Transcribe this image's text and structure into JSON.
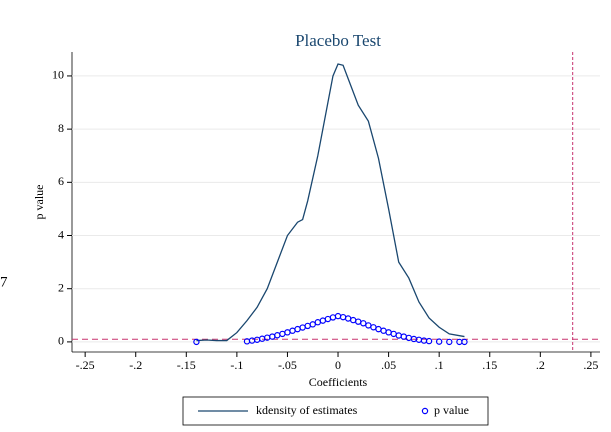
{
  "chart_data": {
    "type": "line",
    "title": "Placebo Test",
    "x_label": "Coefficients",
    "y_label": "p value",
    "edge_label": "7",
    "xlim": [
      -0.263,
      0.259
    ],
    "ylim": [
      -0.38,
      10.9
    ],
    "xticks": [
      {
        "value": -0.25,
        "label": "-.25"
      },
      {
        "value": -0.2,
        "label": "-.2"
      },
      {
        "value": -0.15,
        "label": "-.15"
      },
      {
        "value": -0.1,
        "label": "-.1"
      },
      {
        "value": -0.05,
        "label": "-.05"
      },
      0,
      {
        "value": 0.05,
        "label": ".05"
      },
      {
        "value": 0.1,
        "label": ".1"
      },
      {
        "value": 0.15,
        "label": ".15"
      },
      {
        "value": 0.2,
        "label": ".2"
      },
      {
        "value": 0.25,
        "label": ".25"
      }
    ],
    "yticks": [
      0,
      2,
      4,
      6,
      8,
      10
    ],
    "grid": true,
    "reference_lines": {
      "x": 0.232,
      "y": 0.1,
      "color": "#c8326e"
    },
    "series": [
      {
        "name": "kdensity of estimates",
        "type": "line",
        "color": "#1a476f",
        "x": [
          -0.14,
          -0.13,
          -0.12,
          -0.11,
          -0.1,
          -0.09,
          -0.08,
          -0.07,
          -0.06,
          -0.05,
          -0.04,
          -0.035,
          -0.03,
          -0.02,
          -0.01,
          -0.005,
          0,
          0.005,
          0.01,
          0.02,
          0.03,
          0.04,
          0.05,
          0.06,
          0.07,
          0.08,
          0.09,
          0.1,
          0.11,
          0.125
        ],
        "values": [
          0.05,
          0.07,
          0.05,
          0.05,
          0.35,
          0.8,
          1.3,
          2.0,
          3.0,
          4.0,
          4.5,
          4.6,
          5.3,
          7.0,
          9.0,
          10.0,
          10.45,
          10.4,
          9.9,
          8.9,
          8.3,
          6.9,
          5.0,
          3.0,
          2.4,
          1.5,
          0.9,
          0.55,
          0.3,
          0.2
        ]
      },
      {
        "name": "p value",
        "type": "scatter",
        "color": "#0000ff",
        "x": [
          -0.14,
          -0.09,
          -0.085,
          -0.08,
          -0.075,
          -0.07,
          -0.065,
          -0.06,
          -0.055,
          -0.05,
          -0.045,
          -0.04,
          -0.035,
          -0.03,
          -0.025,
          -0.02,
          -0.015,
          -0.01,
          -0.005,
          0,
          0.005,
          0.01,
          0.015,
          0.02,
          0.025,
          0.03,
          0.035,
          0.04,
          0.045,
          0.05,
          0.055,
          0.06,
          0.065,
          0.07,
          0.075,
          0.08,
          0.085,
          0.09,
          0.1,
          0.11,
          0.12,
          0.125
        ],
        "values": [
          0.0,
          0.02,
          0.05,
          0.08,
          0.12,
          0.16,
          0.2,
          0.25,
          0.3,
          0.36,
          0.42,
          0.48,
          0.54,
          0.6,
          0.66,
          0.74,
          0.8,
          0.86,
          0.92,
          0.97,
          0.93,
          0.88,
          0.82,
          0.76,
          0.7,
          0.62,
          0.55,
          0.48,
          0.42,
          0.36,
          0.3,
          0.24,
          0.2,
          0.15,
          0.11,
          0.08,
          0.05,
          0.03,
          0.01,
          0.0,
          0.0,
          0.0
        ]
      }
    ]
  }
}
